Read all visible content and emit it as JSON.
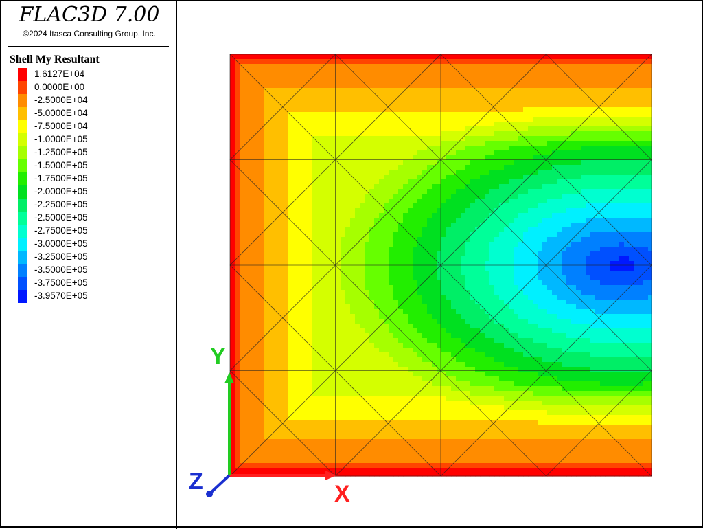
{
  "app": {
    "title": "FLAC3D 7.00",
    "copyright": "©2024 Itasca Consulting Group, Inc."
  },
  "legend": {
    "title": "Shell My Resultant",
    "entries": [
      {
        "label": "1.6127E+04",
        "color": "#ff0000"
      },
      {
        "label": "0.0000E+00",
        "color": "#ff4500"
      },
      {
        "label": "-2.5000E+04",
        "color": "#ff8c00"
      },
      {
        "label": "-5.0000E+04",
        "color": "#ffbf00"
      },
      {
        "label": "-7.5000E+04",
        "color": "#ffff00"
      },
      {
        "label": "-1.0000E+05",
        "color": "#d4ff00"
      },
      {
        "label": "-1.2500E+05",
        "color": "#a6ff00"
      },
      {
        "label": "-1.5000E+05",
        "color": "#66ff00"
      },
      {
        "label": "-1.7500E+05",
        "color": "#22ee00"
      },
      {
        "label": "-2.0000E+05",
        "color": "#00e020"
      },
      {
        "label": "-2.2500E+05",
        "color": "#00ee66"
      },
      {
        "label": "-2.5000E+05",
        "color": "#00ff99"
      },
      {
        "label": "-2.7500E+05",
        "color": "#00ffd0"
      },
      {
        "label": "-3.0000E+05",
        "color": "#00f0ff"
      },
      {
        "label": "-3.2500E+05",
        "color": "#00b8ff"
      },
      {
        "label": "-3.5000E+05",
        "color": "#0080ff"
      },
      {
        "label": "-3.7500E+05",
        "color": "#0050ff"
      },
      {
        "label": "-3.9570E+05",
        "color": "#0018ff"
      }
    ]
  },
  "axes": {
    "x": {
      "label": "X",
      "color": "#ff2020"
    },
    "y": {
      "label": "Y",
      "color": "#22cc22"
    },
    "z": {
      "label": "Z",
      "color": "#1a2fd0"
    }
  }
}
